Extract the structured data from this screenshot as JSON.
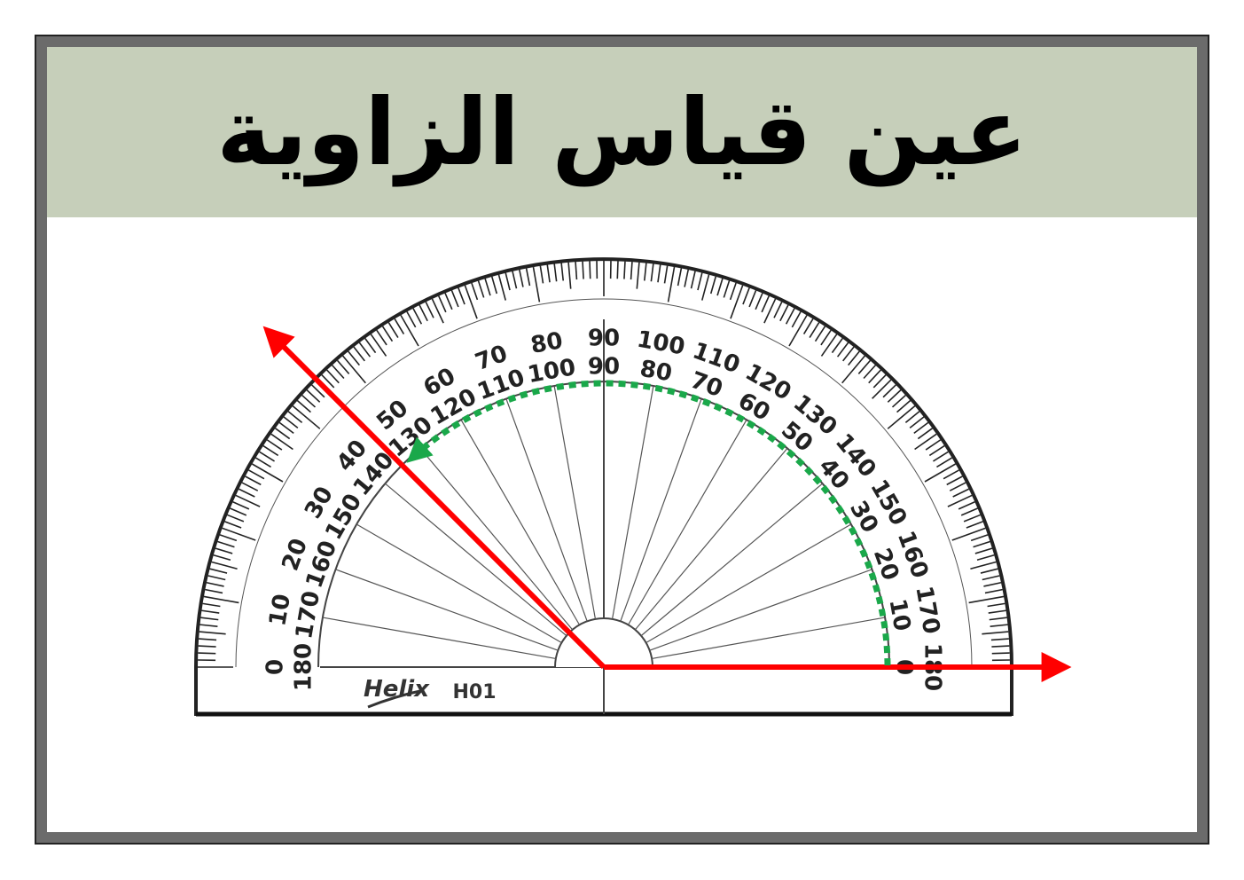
{
  "title": "عين قياس الزاوية",
  "protractor": {
    "brand": "Helix",
    "model": "H01",
    "outer_scale_labels": [
      "0",
      "10",
      "20",
      "30",
      "40",
      "50",
      "60",
      "70",
      "80",
      "90",
      "100",
      "110",
      "120",
      "130",
      "140",
      "150",
      "160",
      "170",
      "180"
    ],
    "inner_scale_labels": [
      "180",
      "170",
      "160",
      "150",
      "140",
      "130",
      "120",
      "110",
      "100",
      "90",
      "80",
      "70",
      "60",
      "50",
      "40",
      "30",
      "20",
      "10",
      "0"
    ]
  },
  "angle": {
    "measure_degrees": 135,
    "ray_color": "#ff0000",
    "arc_color": "#1aa84a"
  }
}
